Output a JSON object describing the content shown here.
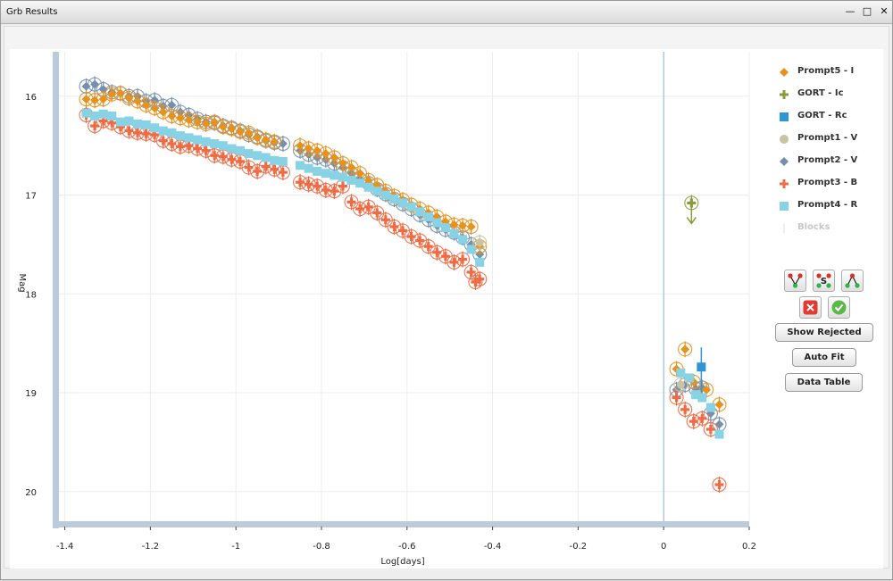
{
  "window": {
    "title": "Grb Results",
    "minimize_icon": "minimize-icon",
    "maximize_icon": "maximize-icon",
    "close_icon": "close-icon"
  },
  "chart_data": {
    "type": "scatter",
    "title": "",
    "xlabel": "Log[days]",
    "ylabel": "Mag",
    "xlim": [
      -1.42,
      0.2
    ],
    "ylim": [
      20.3,
      15.55
    ],
    "y_inverted": true,
    "x_ticks": [
      "-1.4",
      "-1.2",
      "-1",
      "-0.8",
      "-0.6",
      "-0.4",
      "-0.2",
      "0",
      "0.2"
    ],
    "y_ticks": [
      "16",
      "17",
      "18",
      "19",
      "20"
    ],
    "grid": true,
    "legend_position": "right",
    "series": [
      {
        "name": "Prompt5 - I",
        "color": "#e8921e",
        "marker": "diamond",
        "points": [
          [
            -1.35,
            16.03
          ],
          [
            -1.33,
            16.04
          ],
          [
            -1.31,
            16.03
          ],
          [
            -1.29,
            15.98
          ],
          [
            -1.27,
            15.97
          ],
          [
            -1.25,
            16.02
          ],
          [
            -1.23,
            16.05
          ],
          [
            -1.21,
            16.09
          ],
          [
            -1.19,
            16.12
          ],
          [
            -1.17,
            16.16
          ],
          [
            -1.15,
            16.2
          ],
          [
            -1.13,
            16.22
          ],
          [
            -1.11,
            16.24
          ],
          [
            -1.09,
            16.26
          ],
          [
            -1.07,
            16.28
          ],
          [
            -1.05,
            16.26
          ],
          [
            -1.03,
            16.31
          ],
          [
            -1.01,
            16.33
          ],
          [
            -0.99,
            16.36
          ],
          [
            -0.97,
            16.37
          ],
          [
            -0.95,
            16.42
          ],
          [
            -0.93,
            16.44
          ],
          [
            -0.91,
            16.46
          ],
          [
            -0.85,
            16.5
          ],
          [
            -0.83,
            16.53
          ],
          [
            -0.81,
            16.55
          ],
          [
            -0.79,
            16.58
          ],
          [
            -0.77,
            16.62
          ],
          [
            -0.75,
            16.68
          ],
          [
            -0.73,
            16.72
          ],
          [
            -0.71,
            16.78
          ],
          [
            -0.69,
            16.85
          ],
          [
            -0.67,
            16.9
          ],
          [
            -0.65,
            16.96
          ],
          [
            -0.63,
            17.01
          ],
          [
            -0.61,
            17.05
          ],
          [
            -0.59,
            17.1
          ],
          [
            -0.57,
            17.14
          ],
          [
            -0.55,
            17.18
          ],
          [
            -0.53,
            17.22
          ],
          [
            -0.51,
            17.27
          ],
          [
            -0.49,
            17.3
          ],
          [
            -0.47,
            17.31
          ],
          [
            -0.45,
            17.32
          ],
          [
            -0.43,
            17.52
          ],
          [
            0.03,
            18.76
          ],
          [
            0.05,
            18.56
          ],
          [
            0.07,
            18.89
          ],
          [
            0.1,
            18.97
          ],
          [
            0.13,
            19.12
          ]
        ]
      },
      {
        "name": "GORT - Ic",
        "color": "#8b9a3c",
        "marker": "plus",
        "points": [
          [
            0.065,
            17.08
          ]
        ]
      },
      {
        "name": "GORT - Rc",
        "color": "#2e96d5",
        "marker": "square",
        "points": [
          [
            0.088,
            18.74
          ]
        ]
      },
      {
        "name": "Prompt1 - V",
        "color": "#c8c3a0",
        "marker": "circle",
        "points": [
          [
            -0.43,
            17.48
          ],
          [
            0.04,
            18.92
          ]
        ]
      },
      {
        "name": "Prompt2 - V",
        "color": "#7590ad",
        "marker": "diamond",
        "points": [
          [
            -1.35,
            15.9
          ],
          [
            -1.33,
            15.88
          ],
          [
            -1.31,
            15.93
          ],
          [
            -1.29,
            15.96
          ],
          [
            -1.27,
            15.97
          ],
          [
            -1.25,
            16.0
          ],
          [
            -1.23,
            16.0
          ],
          [
            -1.21,
            16.05
          ],
          [
            -1.19,
            16.04
          ],
          [
            -1.17,
            16.1
          ],
          [
            -1.15,
            16.09
          ],
          [
            -1.13,
            16.16
          ],
          [
            -1.11,
            16.19
          ],
          [
            -1.09,
            16.23
          ],
          [
            -1.07,
            16.26
          ],
          [
            -1.05,
            16.27
          ],
          [
            -1.03,
            16.3
          ],
          [
            -1.01,
            16.32
          ],
          [
            -0.99,
            16.35
          ],
          [
            -0.97,
            16.39
          ],
          [
            -0.95,
            16.41
          ],
          [
            -0.93,
            16.45
          ],
          [
            -0.91,
            16.47
          ],
          [
            -0.89,
            16.48
          ],
          [
            -0.85,
            16.55
          ],
          [
            -0.83,
            16.59
          ],
          [
            -0.81,
            16.62
          ],
          [
            -0.79,
            16.64
          ],
          [
            -0.77,
            16.68
          ],
          [
            -0.75,
            16.72
          ],
          [
            -0.73,
            16.78
          ],
          [
            -0.71,
            16.84
          ],
          [
            -0.69,
            16.88
          ],
          [
            -0.67,
            16.94
          ],
          [
            -0.65,
            16.99
          ],
          [
            -0.63,
            17.04
          ],
          [
            -0.61,
            17.09
          ],
          [
            -0.59,
            17.14
          ],
          [
            -0.57,
            17.2
          ],
          [
            -0.55,
            17.25
          ],
          [
            -0.53,
            17.31
          ],
          [
            -0.51,
            17.35
          ],
          [
            -0.49,
            17.38
          ],
          [
            -0.47,
            17.43
          ],
          [
            -0.45,
            17.5
          ],
          [
            -0.43,
            17.6
          ],
          [
            0.03,
            18.97
          ],
          [
            0.05,
            18.92
          ],
          [
            0.075,
            18.96
          ],
          [
            0.09,
            18.95
          ],
          [
            0.11,
            19.21
          ],
          [
            0.13,
            19.32
          ]
        ]
      },
      {
        "name": "Prompt3 - B",
        "color": "#ef6b44",
        "marker": "plus",
        "points": [
          [
            -1.35,
            16.19
          ],
          [
            -1.33,
            16.3
          ],
          [
            -1.31,
            16.25
          ],
          [
            -1.29,
            16.27
          ],
          [
            -1.27,
            16.31
          ],
          [
            -1.25,
            16.35
          ],
          [
            -1.23,
            16.37
          ],
          [
            -1.21,
            16.38
          ],
          [
            -1.19,
            16.39
          ],
          [
            -1.17,
            16.45
          ],
          [
            -1.15,
            16.48
          ],
          [
            -1.13,
            16.51
          ],
          [
            -1.11,
            16.5
          ],
          [
            -1.09,
            16.53
          ],
          [
            -1.07,
            16.55
          ],
          [
            -1.05,
            16.6
          ],
          [
            -1.03,
            16.61
          ],
          [
            -1.01,
            16.64
          ],
          [
            -0.99,
            16.66
          ],
          [
            -0.97,
            16.72
          ],
          [
            -0.95,
            16.76
          ],
          [
            -0.93,
            16.71
          ],
          [
            -0.91,
            16.74
          ],
          [
            -0.89,
            16.77
          ],
          [
            -0.85,
            16.87
          ],
          [
            -0.83,
            16.89
          ],
          [
            -0.81,
            16.91
          ],
          [
            -0.79,
            16.95
          ],
          [
            -0.77,
            16.96
          ],
          [
            -0.75,
            16.91
          ],
          [
            -0.73,
            17.07
          ],
          [
            -0.71,
            17.14
          ],
          [
            -0.69,
            17.12
          ],
          [
            -0.67,
            17.18
          ],
          [
            -0.65,
            17.25
          ],
          [
            -0.63,
            17.32
          ],
          [
            -0.61,
            17.36
          ],
          [
            -0.59,
            17.42
          ],
          [
            -0.57,
            17.46
          ],
          [
            -0.55,
            17.52
          ],
          [
            -0.53,
            17.58
          ],
          [
            -0.51,
            17.62
          ],
          [
            -0.49,
            17.68
          ],
          [
            -0.47,
            17.65
          ],
          [
            -0.45,
            17.78
          ],
          [
            -0.44,
            17.88
          ],
          [
            -0.43,
            17.85
          ],
          [
            0.03,
            19.05
          ],
          [
            0.05,
            19.17
          ],
          [
            0.07,
            19.29
          ],
          [
            0.09,
            19.26
          ],
          [
            0.11,
            19.37
          ],
          [
            0.13,
            19.93
          ]
        ]
      },
      {
        "name": "Prompt4 - R",
        "color": "#87d3e5",
        "marker": "square",
        "points": [
          [
            -1.35,
            16.17
          ],
          [
            -1.33,
            16.2
          ],
          [
            -1.31,
            16.18
          ],
          [
            -1.29,
            16.2
          ],
          [
            -1.27,
            16.26
          ],
          [
            -1.25,
            16.25
          ],
          [
            -1.23,
            16.28
          ],
          [
            -1.21,
            16.29
          ],
          [
            -1.19,
            16.32
          ],
          [
            -1.17,
            16.35
          ],
          [
            -1.15,
            16.37
          ],
          [
            -1.13,
            16.4
          ],
          [
            -1.11,
            16.42
          ],
          [
            -1.09,
            16.44
          ],
          [
            -1.07,
            16.46
          ],
          [
            -1.05,
            16.48
          ],
          [
            -1.03,
            16.5
          ],
          [
            -1.01,
            16.53
          ],
          [
            -0.99,
            16.55
          ],
          [
            -0.97,
            16.58
          ],
          [
            -0.95,
            16.6
          ],
          [
            -0.93,
            16.62
          ],
          [
            -0.91,
            16.65
          ],
          [
            -0.89,
            16.66
          ],
          [
            -0.85,
            16.7
          ],
          [
            -0.83,
            16.73
          ],
          [
            -0.81,
            16.76
          ],
          [
            -0.79,
            16.78
          ],
          [
            -0.77,
            16.8
          ],
          [
            -0.75,
            16.82
          ],
          [
            -0.73,
            16.85
          ],
          [
            -0.71,
            16.88
          ],
          [
            -0.69,
            16.92
          ],
          [
            -0.67,
            16.96
          ],
          [
            -0.65,
            17.0
          ],
          [
            -0.63,
            17.04
          ],
          [
            -0.61,
            17.08
          ],
          [
            -0.59,
            17.12
          ],
          [
            -0.57,
            17.17
          ],
          [
            -0.55,
            17.22
          ],
          [
            -0.53,
            17.28
          ],
          [
            -0.51,
            17.33
          ],
          [
            -0.49,
            17.39
          ],
          [
            -0.47,
            17.45
          ],
          [
            -0.45,
            17.55
          ],
          [
            -0.43,
            17.68
          ],
          [
            0.04,
            18.8
          ],
          [
            0.06,
            18.85
          ],
          [
            0.075,
            19.02
          ],
          [
            0.09,
            19.05
          ],
          [
            0.11,
            19.15
          ],
          [
            0.13,
            19.42
          ]
        ]
      }
    ],
    "disabled_series": "Blocks",
    "vertical_marker_x": 0
  },
  "legend": {
    "items": [
      {
        "label": "Prompt5 - I",
        "icon": "diamond-icon",
        "color": "#e8921e"
      },
      {
        "label": "GORT - Ic",
        "icon": "plus-icon",
        "color": "#8b9a3c"
      },
      {
        "label": "GORT - Rc",
        "icon": "square-icon",
        "color": "#2e96d5"
      },
      {
        "label": "Prompt1 - V",
        "icon": "circle-icon",
        "color": "#c8c3a0"
      },
      {
        "label": "Prompt2 - V",
        "icon": "diamond-icon",
        "color": "#7590ad"
      },
      {
        "label": "Prompt3 - B",
        "icon": "plus-icon",
        "color": "#ef6b44"
      },
      {
        "label": "Prompt4 - R",
        "icon": "square-icon",
        "color": "#87d3e5"
      },
      {
        "label": "Blocks",
        "icon": "blocks-icon",
        "color": "#dddddd"
      }
    ]
  },
  "tools": {
    "row1": [
      "fit-break-down-icon",
      "fit-select-icon",
      "fit-break-up-icon"
    ],
    "row2": [
      "reject-icon",
      "accept-icon"
    ]
  },
  "buttons": {
    "show_rejected": "Show Rejected",
    "auto_fit": "Auto Fit",
    "data_table": "Data Table"
  }
}
